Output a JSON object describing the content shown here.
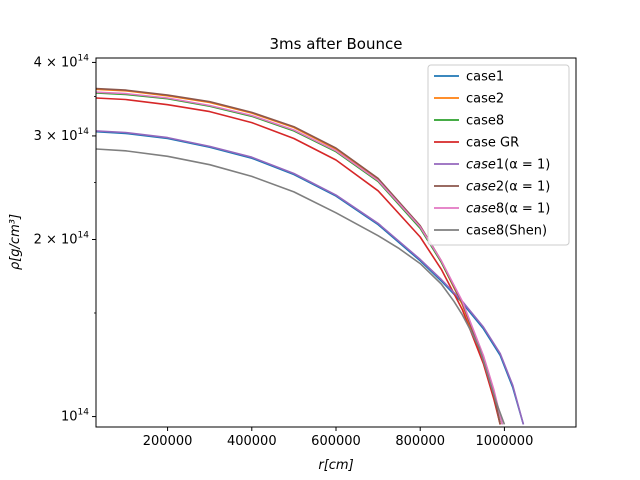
{
  "chart_data": {
    "type": "line",
    "title": "3ms after Bounce",
    "xlabel": "r[cm]",
    "ylabel": "ρ[g/cm³]",
    "xlim": [
      30000,
      1170000
    ],
    "ylim": [
      96000000000000.0,
      407000000000000.0
    ],
    "yscale": "log",
    "grid": false,
    "legend_position": "top-right",
    "x_ticks": [
      {
        "value": 200000,
        "label": "200000"
      },
      {
        "value": 400000,
        "label": "400000"
      },
      {
        "value": 600000,
        "label": "600000"
      },
      {
        "value": 800000,
        "label": "800000"
      },
      {
        "value": 1000000,
        "label": "1000000"
      }
    ],
    "y_major_ticks": [
      {
        "value": 100000000000000.0,
        "label": "10",
        "exp": "14"
      },
      {
        "value": 200000000000000.0,
        "label": "2 × 10",
        "exp": "14"
      },
      {
        "value": 300000000000000.0,
        "label": "3 × 10",
        "exp": "14"
      },
      {
        "value": 400000000000000.0,
        "label": "4 × 10",
        "exp": "14"
      }
    ],
    "y_minor_ticks": [
      150000000000000.0,
      250000000000000.0,
      350000000000000.0
    ],
    "series": [
      {
        "name": "case1",
        "color": "#1f77b4",
        "x": [
          30000,
          100000,
          200000,
          300000,
          400000,
          500000,
          600000,
          700000,
          800000,
          850000,
          900000,
          950000,
          990000,
          1020000,
          1045000
        ],
        "y": [
          305000000000000.0,
          303000000000000.0,
          297000000000000.0,
          287000000000000.0,
          275000000000000.0,
          258000000000000.0,
          237000000000000.0,
          212000000000000.0,
          184000000000000.0,
          170000000000000.0,
          156000000000000.0,
          141000000000000.0,
          127000000000000.0,
          112000000000000.0,
          97000000000000.0
        ]
      },
      {
        "name": "case2",
        "color": "#ff7f0e",
        "x": [
          30000,
          100000,
          200000,
          300000,
          400000,
          500000,
          600000,
          700000,
          800000,
          850000,
          900000,
          950000,
          975000,
          990000
        ],
        "y": [
          360000000000000.0,
          358000000000000.0,
          351000000000000.0,
          342000000000000.0,
          328000000000000.0,
          310000000000000.0,
          285000000000000.0,
          253000000000000.0,
          210000000000000.0,
          183000000000000.0,
          155000000000000.0,
          124000000000000.0,
          108000000000000.0,
          97000000000000.0
        ]
      },
      {
        "name": "case8",
        "color": "#2ca02c",
        "x": [
          30000,
          100000,
          200000,
          300000,
          400000,
          500000,
          600000,
          700000,
          800000,
          850000,
          900000,
          950000,
          975000,
          995000
        ],
        "y": [
          355000000000000.0,
          353000000000000.0,
          347000000000000.0,
          337000000000000.0,
          324000000000000.0,
          306000000000000.0,
          282000000000000.0,
          251000000000000.0,
          209000000000000.0,
          183000000000000.0,
          156000000000000.0,
          126000000000000.0,
          110000000000000.0,
          97000000000000.0
        ]
      },
      {
        "name": "case GR",
        "color": "#d62728",
        "x": [
          30000,
          100000,
          200000,
          300000,
          400000,
          500000,
          600000,
          700000,
          800000,
          850000,
          900000,
          950000,
          975000,
          990000
        ],
        "y": [
          348000000000000.0,
          346000000000000.0,
          339000000000000.0,
          330000000000000.0,
          316000000000000.0,
          297000000000000.0,
          273000000000000.0,
          242000000000000.0,
          202000000000000.0,
          178000000000000.0,
          152000000000000.0,
          123000000000000.0,
          107000000000000.0,
          97000000000000.0
        ]
      },
      {
        "name": "case1(α = 1)",
        "italic_prefix": "case",
        "suffix": "1(α = 1)",
        "color": "#9467bd",
        "x": [
          30000,
          100000,
          200000,
          300000,
          400000,
          500000,
          600000,
          700000,
          800000,
          850000,
          900000,
          950000,
          990000,
          1020000,
          1045000
        ],
        "y": [
          306000000000000.0,
          304000000000000.0,
          298000000000000.0,
          288000000000000.0,
          276000000000000.0,
          259000000000000.0,
          238000000000000.0,
          213000000000000.0,
          185000000000000.0,
          171000000000000.0,
          157000000000000.0,
          142000000000000.0,
          128000000000000.0,
          113000000000000.0,
          97000000000000.0
        ]
      },
      {
        "name": "case2(α = 1)",
        "italic_prefix": "case",
        "suffix": "2(α = 1)",
        "color": "#8c564b",
        "x": [
          30000,
          100000,
          200000,
          300000,
          400000,
          500000,
          600000,
          700000,
          800000,
          850000,
          900000,
          950000,
          975000,
          990000
        ],
        "y": [
          361000000000000.0,
          359000000000000.0,
          352000000000000.0,
          343000000000000.0,
          329000000000000.0,
          311000000000000.0,
          286000000000000.0,
          254000000000000.0,
          211000000000000.0,
          184000000000000.0,
          156000000000000.0,
          125000000000000.0,
          109000000000000.0,
          97000000000000.0
        ]
      },
      {
        "name": "case8(α = 1)",
        "italic_prefix": "case",
        "suffix": "8(α = 1)",
        "color": "#e377c2",
        "x": [
          30000,
          100000,
          200000,
          300000,
          400000,
          500000,
          600000,
          700000,
          800000,
          850000,
          900000,
          950000,
          975000,
          995000
        ],
        "y": [
          356000000000000.0,
          354000000000000.0,
          348000000000000.0,
          338000000000000.0,
          325000000000000.0,
          307000000000000.0,
          283000000000000.0,
          252000000000000.0,
          210000000000000.0,
          184000000000000.0,
          157000000000000.0,
          127000000000000.0,
          111000000000000.0,
          97000000000000.0
        ]
      },
      {
        "name": "case8(Shen)",
        "color": "#7f7f7f",
        "x": [
          30000,
          100000,
          200000,
          300000,
          400000,
          500000,
          600000,
          700000,
          750000,
          800000,
          850000,
          880000,
          900000,
          920000,
          940000,
          960000,
          980000,
          1000000
        ],
        "y": [
          285000000000000.0,
          283000000000000.0,
          277000000000000.0,
          268000000000000.0,
          256000000000000.0,
          241000000000000.0,
          222000000000000.0,
          203000000000000.0,
          193000000000000.0,
          182000000000000.0,
          168000000000000.0,
          157000000000000.0,
          149000000000000.0,
          140000000000000.0,
          131000000000000.0,
          118000000000000.0,
          106000000000000.0,
          97000000000000.0
        ]
      }
    ]
  }
}
